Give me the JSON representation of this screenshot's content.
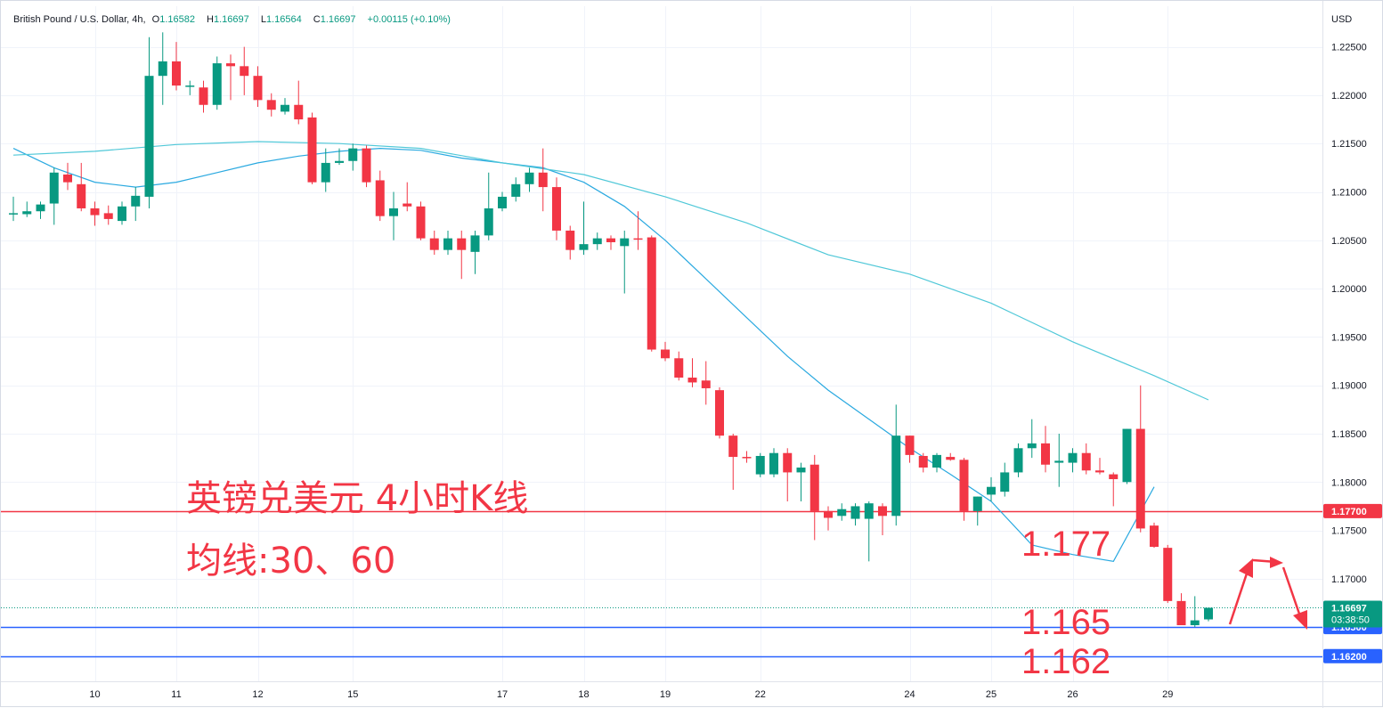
{
  "header": {
    "symbol": "British Pound / U.S. Dollar, 4h,",
    "open_label": "O",
    "open": "1.16582",
    "high_label": "H",
    "high": "1.16697",
    "low_label": "L",
    "low": "1.16564",
    "close_label": "C",
    "close": "1.16697",
    "change": "+0.00115 (+0.10%)"
  },
  "currency": "USD",
  "annotations": {
    "title_cn": "英镑兑美元 4小时K线",
    "ma_cn": "均线:30、60",
    "level_177": "1.177",
    "level_165": "1.165",
    "level_162": "1.162"
  },
  "badges": {
    "red_line": "1.17700",
    "last_price": "1.16697",
    "countdown": "03:38:50",
    "blue1": "1.16500",
    "blue2": "1.16200"
  },
  "colors": {
    "up": "#089981",
    "down": "#f23645",
    "ma30": "#2aa9e0",
    "ma60": "#50c8d8",
    "red_level": "#f23645",
    "blue_level": "#2962ff"
  },
  "chart_data": {
    "type": "candlestick",
    "title": "British Pound / U.S. Dollar, 4h",
    "ylim": [
      1.161,
      1.2265
    ],
    "y_ticks": [
      "1.22500",
      "1.22000",
      "1.21500",
      "1.21000",
      "1.20500",
      "1.20000",
      "1.19500",
      "1.19000",
      "1.18500",
      "1.18000",
      "1.17500",
      "1.17000"
    ],
    "x_ticks": [
      {
        "label": "10",
        "index": 6
      },
      {
        "label": "11",
        "index": 12
      },
      {
        "label": "12",
        "index": 18
      },
      {
        "label": "15",
        "index": 25
      },
      {
        "label": "17",
        "index": 36
      },
      {
        "label": "18",
        "index": 42
      },
      {
        "label": "19",
        "index": 48
      },
      {
        "label": "22",
        "index": 55
      },
      {
        "label": "24",
        "index": 66
      },
      {
        "label": "25",
        "index": 72
      },
      {
        "label": "26",
        "index": 78
      },
      {
        "label": "29",
        "index": 85
      }
    ],
    "candles": [
      {
        "o": 1.2078,
        "h": 1.2095,
        "l": 1.207,
        "c": 1.2078
      },
      {
        "o": 1.2077,
        "h": 1.209,
        "l": 1.2074,
        "c": 1.208
      },
      {
        "o": 1.208,
        "h": 1.209,
        "l": 1.2072,
        "c": 1.2087
      },
      {
        "o": 1.2088,
        "h": 1.2125,
        "l": 1.2066,
        "c": 1.212
      },
      {
        "o": 1.2118,
        "h": 1.213,
        "l": 1.2102,
        "c": 1.211
      },
      {
        "o": 1.2108,
        "h": 1.213,
        "l": 1.208,
        "c": 1.2083
      },
      {
        "o": 1.2083,
        "h": 1.209,
        "l": 1.2065,
        "c": 1.2076
      },
      {
        "o": 1.2078,
        "h": 1.2086,
        "l": 1.2066,
        "c": 1.2072
      },
      {
        "o": 1.207,
        "h": 1.209,
        "l": 1.2066,
        "c": 1.2085
      },
      {
        "o": 1.2085,
        "h": 1.2105,
        "l": 1.207,
        "c": 1.2096
      },
      {
        "o": 1.2095,
        "h": 1.226,
        "l": 1.2083,
        "c": 1.222
      },
      {
        "o": 1.222,
        "h": 1.2265,
        "l": 1.219,
        "c": 1.2235
      },
      {
        "o": 1.2235,
        "h": 1.2255,
        "l": 1.2205,
        "c": 1.221
      },
      {
        "o": 1.221,
        "h": 1.2215,
        "l": 1.22,
        "c": 1.221
      },
      {
        "o": 1.2208,
        "h": 1.2215,
        "l": 1.2182,
        "c": 1.219
      },
      {
        "o": 1.219,
        "h": 1.224,
        "l": 1.2185,
        "c": 1.2233
      },
      {
        "o": 1.2233,
        "h": 1.2242,
        "l": 1.2195,
        "c": 1.223
      },
      {
        "o": 1.223,
        "h": 1.225,
        "l": 1.22,
        "c": 1.222
      },
      {
        "o": 1.222,
        "h": 1.223,
        "l": 1.2188,
        "c": 1.2195
      },
      {
        "o": 1.2195,
        "h": 1.2202,
        "l": 1.2178,
        "c": 1.2185
      },
      {
        "o": 1.2183,
        "h": 1.2197,
        "l": 1.218,
        "c": 1.219
      },
      {
        "o": 1.219,
        "h": 1.2215,
        "l": 1.217,
        "c": 1.2175
      },
      {
        "o": 1.2177,
        "h": 1.2182,
        "l": 1.2108,
        "c": 1.211
      },
      {
        "o": 1.211,
        "h": 1.2145,
        "l": 1.21,
        "c": 1.213
      },
      {
        "o": 1.213,
        "h": 1.2145,
        "l": 1.2128,
        "c": 1.2132
      },
      {
        "o": 1.2132,
        "h": 1.215,
        "l": 1.2122,
        "c": 1.2145
      },
      {
        "o": 1.2145,
        "h": 1.2148,
        "l": 1.2105,
        "c": 1.211
      },
      {
        "o": 1.2112,
        "h": 1.2122,
        "l": 1.207,
        "c": 1.2075
      },
      {
        "o": 1.2075,
        "h": 1.21,
        "l": 1.205,
        "c": 1.2083
      },
      {
        "o": 1.2088,
        "h": 1.211,
        "l": 1.208,
        "c": 1.2085
      },
      {
        "o": 1.2085,
        "h": 1.209,
        "l": 1.205,
        "c": 1.2052
      },
      {
        "o": 1.2052,
        "h": 1.206,
        "l": 1.2035,
        "c": 1.204
      },
      {
        "o": 1.204,
        "h": 1.206,
        "l": 1.2035,
        "c": 1.2052
      },
      {
        "o": 1.2052,
        "h": 1.206,
        "l": 1.201,
        "c": 1.204
      },
      {
        "o": 1.2038,
        "h": 1.206,
        "l": 1.2015,
        "c": 1.2055
      },
      {
        "o": 1.2055,
        "h": 1.212,
        "l": 1.205,
        "c": 1.2083
      },
      {
        "o": 1.2083,
        "h": 1.21,
        "l": 1.208,
        "c": 1.2095
      },
      {
        "o": 1.2095,
        "h": 1.2115,
        "l": 1.209,
        "c": 1.2108
      },
      {
        "o": 1.2108,
        "h": 1.2125,
        "l": 1.21,
        "c": 1.212
      },
      {
        "o": 1.212,
        "h": 1.2145,
        "l": 1.208,
        "c": 1.2105
      },
      {
        "o": 1.2105,
        "h": 1.2115,
        "l": 1.205,
        "c": 1.206
      },
      {
        "o": 1.206,
        "h": 1.2065,
        "l": 1.203,
        "c": 1.204
      },
      {
        "o": 1.204,
        "h": 1.209,
        "l": 1.2035,
        "c": 1.2046
      },
      {
        "o": 1.2046,
        "h": 1.2058,
        "l": 1.204,
        "c": 1.2052
      },
      {
        "o": 1.2052,
        "h": 1.2055,
        "l": 1.204,
        "c": 1.2048
      },
      {
        "o": 1.2044,
        "h": 1.206,
        "l": 1.1995,
        "c": 1.2052
      },
      {
        "o": 1.2052,
        "h": 1.208,
        "l": 1.204,
        "c": 1.2051
      },
      {
        "o": 1.2053,
        "h": 1.2055,
        "l": 1.1935,
        "c": 1.1937
      },
      {
        "o": 1.1937,
        "h": 1.1945,
        "l": 1.1925,
        "c": 1.1928
      },
      {
        "o": 1.1928,
        "h": 1.1935,
        "l": 1.1905,
        "c": 1.1908
      },
      {
        "o": 1.1908,
        "h": 1.1928,
        "l": 1.1898,
        "c": 1.1903
      },
      {
        "o": 1.1905,
        "h": 1.1925,
        "l": 1.188,
        "c": 1.1897
      },
      {
        "o": 1.1895,
        "h": 1.1898,
        "l": 1.1845,
        "c": 1.1848
      },
      {
        "o": 1.1848,
        "h": 1.185,
        "l": 1.1792,
        "c": 1.1826
      },
      {
        "o": 1.1826,
        "h": 1.1832,
        "l": 1.182,
        "c": 1.1825
      },
      {
        "o": 1.1808,
        "h": 1.183,
        "l": 1.1805,
        "c": 1.1827
      },
      {
        "o": 1.1808,
        "h": 1.1835,
        "l": 1.1805,
        "c": 1.183
      },
      {
        "o": 1.183,
        "h": 1.1835,
        "l": 1.178,
        "c": 1.181
      },
      {
        "o": 1.181,
        "h": 1.182,
        "l": 1.178,
        "c": 1.1815
      },
      {
        "o": 1.1818,
        "h": 1.1828,
        "l": 1.174,
        "c": 1.177
      },
      {
        "o": 1.177,
        "h": 1.1775,
        "l": 1.175,
        "c": 1.1763
      },
      {
        "o": 1.1765,
        "h": 1.1778,
        "l": 1.176,
        "c": 1.1772
      },
      {
        "o": 1.1762,
        "h": 1.1778,
        "l": 1.1755,
        "c": 1.1775
      },
      {
        "o": 1.1762,
        "h": 1.178,
        "l": 1.1718,
        "c": 1.1778
      },
      {
        "o": 1.1775,
        "h": 1.1778,
        "l": 1.1745,
        "c": 1.1765
      },
      {
        "o": 1.1765,
        "h": 1.188,
        "l": 1.1755,
        "c": 1.1848
      },
      {
        "o": 1.1848,
        "h": 1.1848,
        "l": 1.182,
        "c": 1.1828
      },
      {
        "o": 1.1827,
        "h": 1.183,
        "l": 1.181,
        "c": 1.1815
      },
      {
        "o": 1.1815,
        "h": 1.183,
        "l": 1.181,
        "c": 1.1828
      },
      {
        "o": 1.1826,
        "h": 1.183,
        "l": 1.1822,
        "c": 1.1823
      },
      {
        "o": 1.1823,
        "h": 1.1825,
        "l": 1.176,
        "c": 1.177
      },
      {
        "o": 1.177,
        "h": 1.1785,
        "l": 1.1755,
        "c": 1.1785
      },
      {
        "o": 1.1787,
        "h": 1.1805,
        "l": 1.178,
        "c": 1.1795
      },
      {
        "o": 1.179,
        "h": 1.182,
        "l": 1.1785,
        "c": 1.181
      },
      {
        "o": 1.181,
        "h": 1.184,
        "l": 1.1805,
        "c": 1.1835
      },
      {
        "o": 1.1835,
        "h": 1.1865,
        "l": 1.1825,
        "c": 1.184
      },
      {
        "o": 1.184,
        "h": 1.1858,
        "l": 1.181,
        "c": 1.1818
      },
      {
        "o": 1.182,
        "h": 1.185,
        "l": 1.1795,
        "c": 1.1822
      },
      {
        "o": 1.182,
        "h": 1.1835,
        "l": 1.181,
        "c": 1.183
      },
      {
        "o": 1.183,
        "h": 1.184,
        "l": 1.1808,
        "c": 1.1812
      },
      {
        "o": 1.1812,
        "h": 1.1825,
        "l": 1.1808,
        "c": 1.181
      },
      {
        "o": 1.1808,
        "h": 1.181,
        "l": 1.1775,
        "c": 1.1803
      },
      {
        "o": 1.18,
        "h": 1.1855,
        "l": 1.1798,
        "c": 1.1855
      },
      {
        "o": 1.1855,
        "h": 1.19,
        "l": 1.1748,
        "c": 1.1752
      },
      {
        "o": 1.1755,
        "h": 1.1758,
        "l": 1.1732,
        "c": 1.1733
      },
      {
        "o": 1.1732,
        "h": 1.1735,
        "l": 1.1675,
        "c": 1.1677
      },
      {
        "o": 1.1677,
        "h": 1.1685,
        "l": 1.1652,
        "c": 1.1652
      },
      {
        "o": 1.1652,
        "h": 1.1682,
        "l": 1.165,
        "c": 1.1657
      },
      {
        "o": 1.1658,
        "h": 1.167,
        "l": 1.1656,
        "c": 1.167
      }
    ],
    "series": [
      {
        "name": "MA 30",
        "color": "#2aa9e0",
        "points": [
          [
            0,
            1.2145
          ],
          [
            3,
            1.2125
          ],
          [
            6,
            1.211
          ],
          [
            9,
            1.2105
          ],
          [
            12,
            1.211
          ],
          [
            15,
            1.212
          ],
          [
            18,
            1.213
          ],
          [
            21,
            1.2137
          ],
          [
            24,
            1.2142
          ],
          [
            27,
            1.2145
          ],
          [
            30,
            1.2143
          ],
          [
            33,
            1.2135
          ],
          [
            36,
            1.213
          ],
          [
            39,
            1.2125
          ],
          [
            42,
            1.211
          ],
          [
            45,
            1.2085
          ],
          [
            48,
            1.205
          ],
          [
            51,
            1.201
          ],
          [
            54,
            1.197
          ],
          [
            57,
            1.193
          ],
          [
            60,
            1.1895
          ],
          [
            63,
            1.1865
          ],
          [
            66,
            1.1835
          ],
          [
            69,
            1.1808
          ],
          [
            72,
            1.178
          ],
          [
            75,
            1.1735
          ],
          [
            78,
            1.1725
          ],
          [
            81,
            1.1718
          ],
          [
            84,
            1.1795
          ]
        ]
      },
      {
        "name": "MA 60",
        "color": "#50c8d8",
        "points": [
          [
            0,
            1.2138
          ],
          [
            6,
            1.2142
          ],
          [
            12,
            1.2149
          ],
          [
            18,
            1.2152
          ],
          [
            24,
            1.215
          ],
          [
            30,
            1.2145
          ],
          [
            36,
            1.213
          ],
          [
            42,
            1.2118
          ],
          [
            48,
            1.2095
          ],
          [
            54,
            1.2068
          ],
          [
            60,
            1.2035
          ],
          [
            66,
            1.2015
          ],
          [
            72,
            1.1985
          ],
          [
            78,
            1.1945
          ],
          [
            84,
            1.191
          ],
          [
            88,
            1.1885
          ]
        ]
      }
    ],
    "levels": [
      {
        "value": 1.177,
        "color": "#f23645"
      },
      {
        "value": 1.165,
        "color": "#2962ff"
      },
      {
        "value": 1.162,
        "color": "#2962ff"
      }
    ]
  }
}
